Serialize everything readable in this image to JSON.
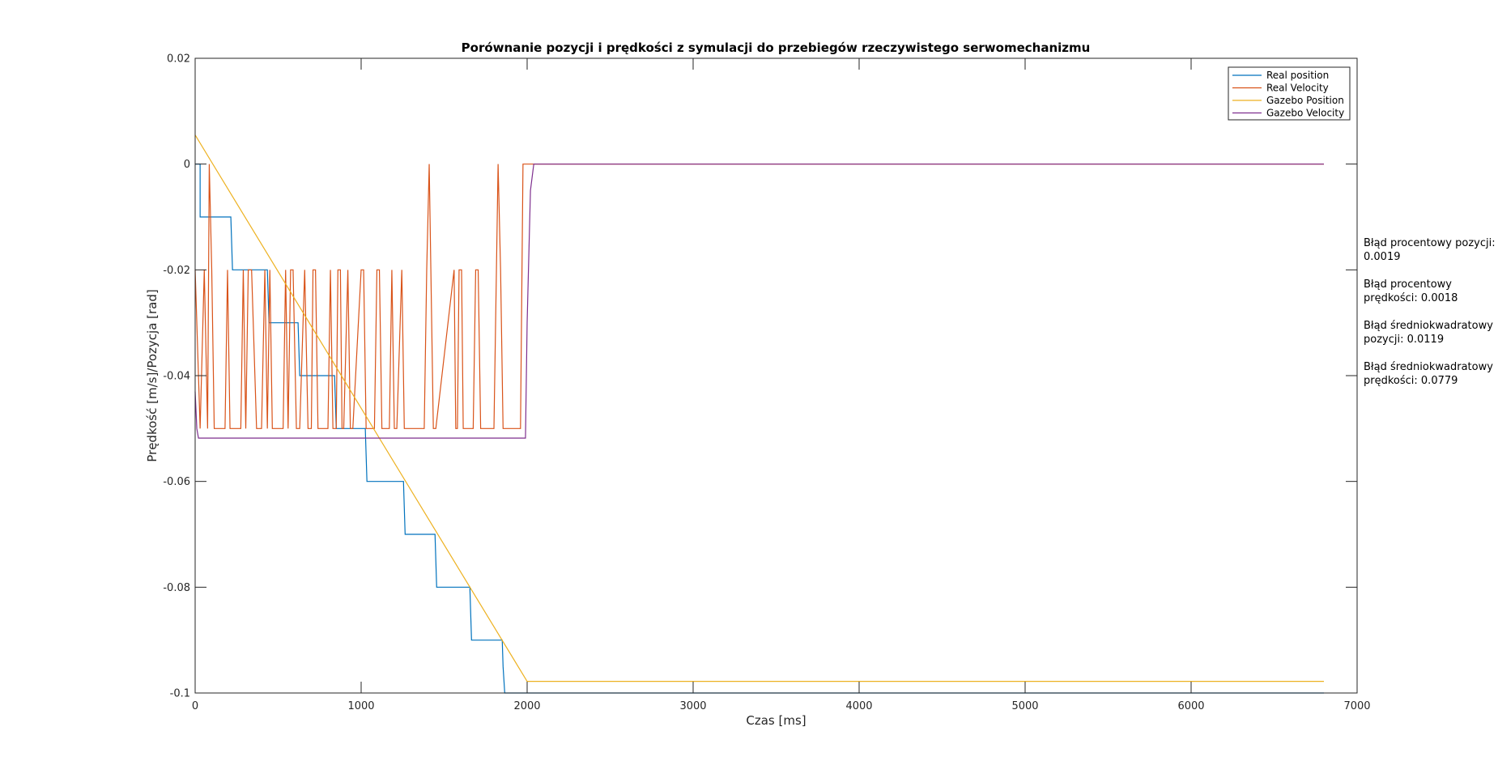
{
  "chart_data": {
    "type": "line",
    "title": "Porównanie pozycji i prędkości z symulacji do przebiegów rzeczywistego serwomechanizmu",
    "xlabel": "Czas [ms]",
    "ylabel": "Prędkość [m/s]/Pozycja [rad]",
    "xlim": [
      0,
      7000
    ],
    "ylim": [
      -0.1,
      0.02
    ],
    "xticks": [
      "0",
      "1000",
      "2000",
      "3000",
      "4000",
      "5000",
      "6000",
      "7000"
    ],
    "yticks": [
      "0.02",
      "0",
      "-0.02",
      "-0.04",
      "-0.06",
      "-0.08",
      "-0.1"
    ],
    "grid": false,
    "legend_position": "top-right",
    "series": [
      {
        "name": "Real position",
        "color": "#0072BD",
        "x": [
          0,
          30,
          30,
          215,
          220,
          225,
          435,
          440,
          445,
          620,
          625,
          630,
          840,
          845,
          850,
          1025,
          1030,
          1035,
          1255,
          1260,
          1265,
          1445,
          1450,
          1455,
          1655,
          1660,
          1665,
          1850,
          1855,
          1865,
          6800
        ],
        "y": [
          0,
          0,
          -0.01,
          -0.01,
          -0.015,
          -0.02,
          -0.02,
          -0.025,
          -0.03,
          -0.03,
          -0.035,
          -0.04,
          -0.04,
          -0.045,
          -0.05,
          -0.05,
          -0.055,
          -0.06,
          -0.06,
          -0.065,
          -0.07,
          -0.07,
          -0.075,
          -0.08,
          -0.08,
          -0.085,
          -0.09,
          -0.09,
          -0.095,
          -0.1,
          -0.1
        ]
      },
      {
        "name": "Real Velocity",
        "color": "#D95319",
        "x": [
          0,
          30,
          55,
          75,
          85,
          100,
          115,
          130,
          180,
          195,
          210,
          225,
          275,
          290,
          305,
          320,
          340,
          370,
          400,
          420,
          435,
          450,
          465,
          480,
          530,
          545,
          560,
          575,
          590,
          610,
          630,
          660,
          680,
          700,
          710,
          725,
          740,
          800,
          815,
          830,
          850,
          860,
          875,
          885,
          895,
          920,
          935,
          950,
          1000,
          1015,
          1030,
          1080,
          1095,
          1110,
          1125,
          1170,
          1185,
          1200,
          1215,
          1245,
          1260,
          1275,
          1380,
          1395,
          1410,
          1420,
          1435,
          1450,
          1560,
          1570,
          1580,
          1590,
          1605,
          1615,
          1675,
          1690,
          1705,
          1720,
          1800,
          1815,
          1825,
          1840,
          1855,
          1870,
          1960,
          1975,
          1985,
          2000,
          6800
        ],
        "y": [
          -0.02,
          -0.05,
          -0.02,
          -0.05,
          0,
          -0.02,
          -0.05,
          -0.05,
          -0.05,
          -0.02,
          -0.05,
          -0.05,
          -0.05,
          -0.02,
          -0.05,
          -0.02,
          -0.02,
          -0.05,
          -0.05,
          -0.02,
          -0.05,
          -0.02,
          -0.05,
          -0.05,
          -0.05,
          -0.02,
          -0.05,
          -0.02,
          -0.02,
          -0.05,
          -0.05,
          -0.02,
          -0.05,
          -0.05,
          -0.02,
          -0.02,
          -0.05,
          -0.05,
          -0.02,
          -0.05,
          -0.05,
          -0.02,
          -0.02,
          -0.05,
          -0.05,
          -0.02,
          -0.05,
          -0.05,
          -0.02,
          -0.02,
          -0.05,
          -0.05,
          -0.02,
          -0.02,
          -0.05,
          -0.05,
          -0.02,
          -0.05,
          -0.05,
          -0.02,
          -0.05,
          -0.05,
          -0.05,
          -0.02,
          0,
          -0.02,
          -0.05,
          -0.05,
          -0.02,
          -0.05,
          -0.05,
          -0.02,
          -0.02,
          -0.05,
          -0.05,
          -0.02,
          -0.02,
          -0.05,
          -0.05,
          -0.02,
          0,
          -0.02,
          -0.05,
          -0.05,
          -0.05,
          0,
          0,
          0,
          0
        ]
      },
      {
        "name": "Gazebo Position",
        "color": "#EDB120",
        "x": [
          0,
          2000,
          6800
        ],
        "y": [
          0.0055,
          -0.0978,
          -0.0978
        ]
      },
      {
        "name": "Gazebo Velocity",
        "color": "#7E2F8E",
        "x": [
          0,
          10,
          20,
          1990,
          2000,
          2020,
          2040,
          6800
        ],
        "y": [
          -0.043,
          -0.05,
          -0.0518,
          -0.0518,
          -0.03,
          -0.005,
          0,
          0
        ]
      }
    ]
  },
  "annotations": [
    "Błąd procentowy pozycji:\n0.0019",
    "Błąd procentowy\nprędkości: 0.0018",
    "Błąd średniokwadratowy\npozycji: 0.0119",
    "Błąd średniokwadratowy\nprędkości: 0.0779"
  ]
}
